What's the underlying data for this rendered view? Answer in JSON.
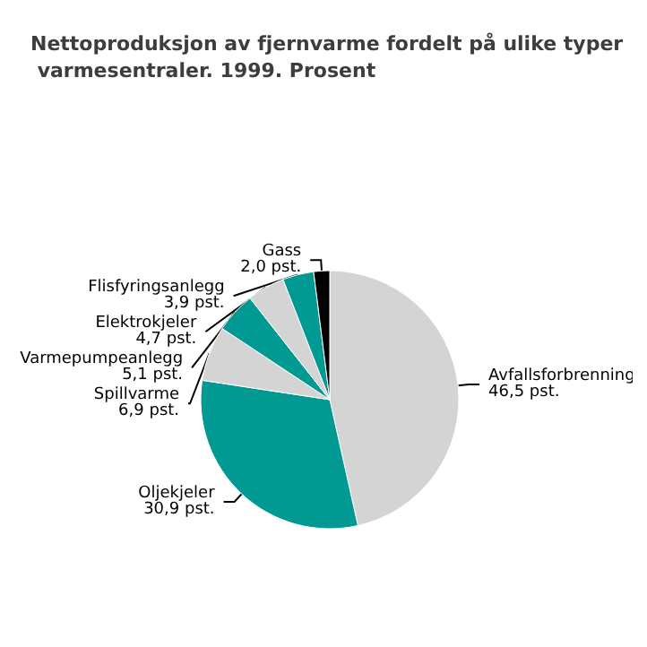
{
  "chart_data": {
    "type": "pie",
    "title": "Nettoproduksjon av fjernvarme fordelt på ulike typer varmesentraler. 1999. Prosent",
    "categories": [
      "Avfallsforbrenning",
      "Oljekjeler",
      "Spillvarme",
      "Varmepumpeanlegg",
      "Elektrokjeler",
      "Flisfyringsanlegg",
      "Gass"
    ],
    "values": [
      46.5,
      30.9,
      6.9,
      5.1,
      4.7,
      3.9,
      2.0
    ],
    "value_labels": [
      "46,5 pst.",
      "30,9 pst.",
      "6,9 pst.",
      "5,1 pst.",
      "4,7 pst.",
      "3,9 pst.",
      "2,0 pst."
    ],
    "colors": [
      "#d4d4d4",
      "#009a93",
      "#d4d4d4",
      "#009a93",
      "#d4d4d4",
      "#009a93",
      "#000000"
    ]
  }
}
